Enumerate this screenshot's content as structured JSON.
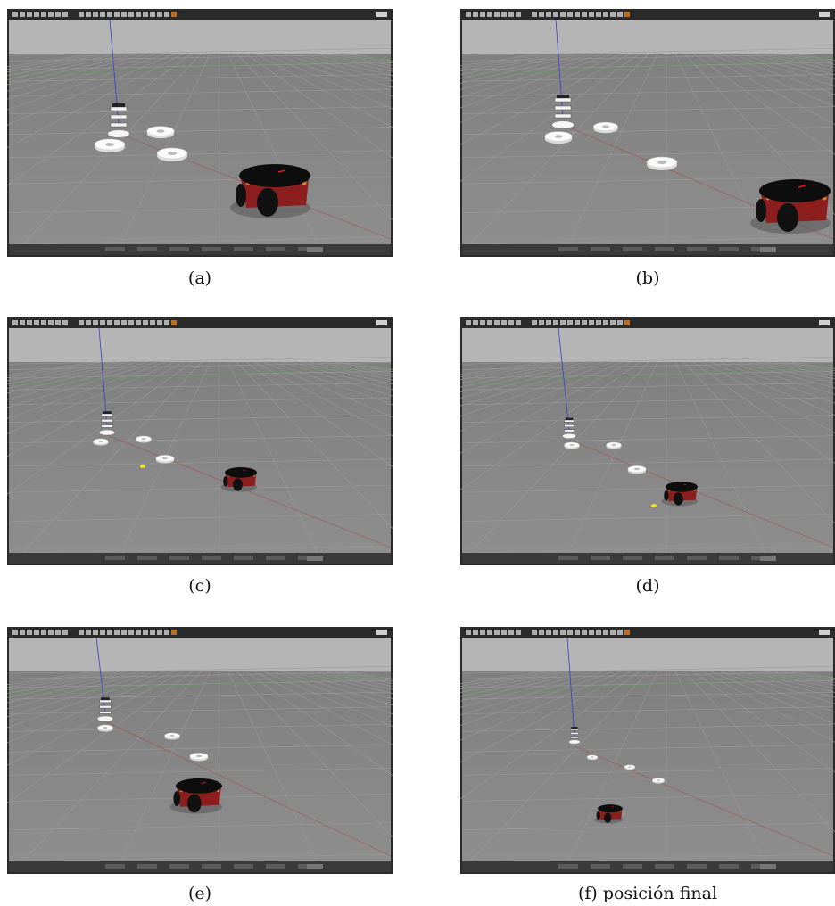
{
  "panels": [
    {
      "caption": "(a)"
    },
    {
      "caption": "(b)"
    },
    {
      "caption": "(c)"
    },
    {
      "caption": "(d)"
    },
    {
      "caption": "(e)"
    },
    {
      "caption": "(f) posición final"
    }
  ]
}
